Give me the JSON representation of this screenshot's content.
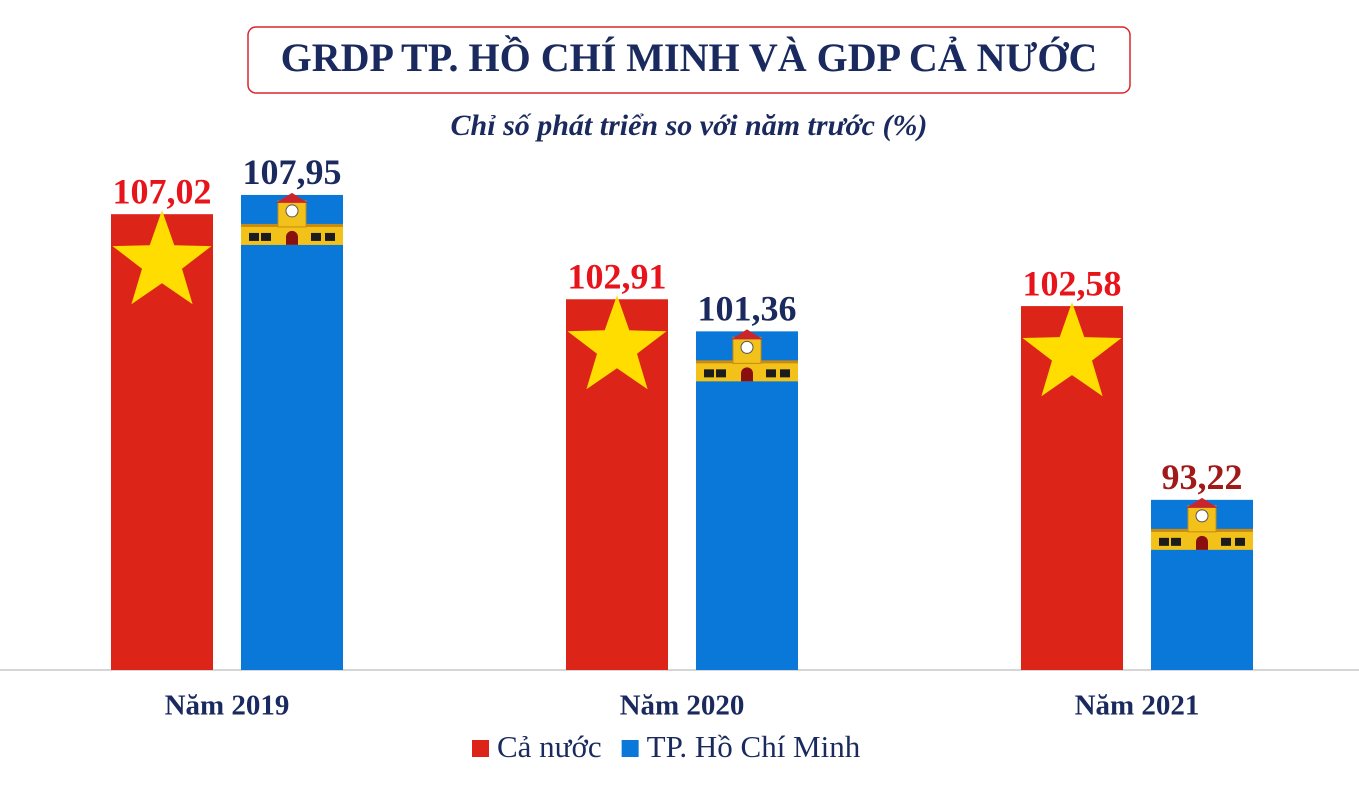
{
  "chart_data": {
    "type": "bar",
    "title": "GRDP TP. HỒ CHÍ MINH VÀ GDP CẢ NƯỚC",
    "subtitle": "Chỉ số phát triển so với năm trước (%)",
    "categories": [
      "Năm 2019",
      "Năm 2020",
      "Năm 2021"
    ],
    "series": [
      {
        "name": "Cả nước",
        "color": "#dc2418",
        "label_color": "#e8141b",
        "values": [
          107.02,
          102.91,
          102.58
        ],
        "value_labels": [
          "107,02",
          "102,91",
          "102,58"
        ]
      },
      {
        "name": "TP. Hồ Chí Minh",
        "color": "#0a78d8",
        "label_color": "#1a2a5e",
        "values": [
          107.95,
          101.36,
          93.22
        ],
        "value_labels": [
          "107,95",
          "101,36",
          "93,22"
        ],
        "value_label_colors": [
          "#1a2a5e",
          "#1a2a5e",
          "#a01a1a"
        ]
      }
    ],
    "ylim": [
      85,
      110
    ],
    "grid": false
  }
}
